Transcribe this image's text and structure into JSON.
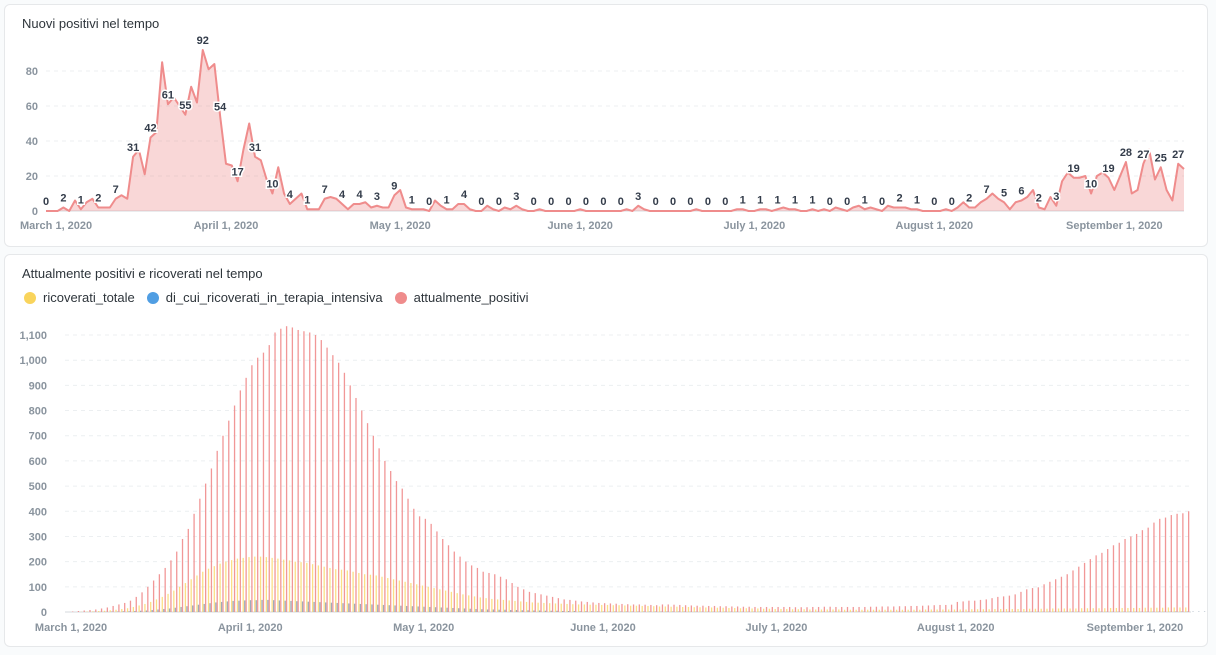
{
  "colors": {
    "positivi": "#ef8c8c",
    "ricoverati": "#f9d45c",
    "terapia": "#509ee3",
    "terapia_bar": "#95a3b3",
    "grid": "#eceff1"
  },
  "chart_data": [
    {
      "type": "area",
      "title": "Nuovi positivi nel tempo",
      "start_date": "2020-03-01",
      "label_every": 3,
      "ylim": [
        0,
        95
      ],
      "yticks": [
        0,
        20,
        40,
        60,
        80
      ],
      "xticks": [
        {
          "date": "2020-03-01",
          "label": "March 1, 2020"
        },
        {
          "date": "2020-04-01",
          "label": "April 1, 2020"
        },
        {
          "date": "2020-05-01",
          "label": "May 1, 2020"
        },
        {
          "date": "2020-06-01",
          "label": "June 1, 2020"
        },
        {
          "date": "2020-07-01",
          "label": "July 1, 2020"
        },
        {
          "date": "2020-08-01",
          "label": "August 1, 2020"
        },
        {
          "date": "2020-09-01",
          "label": "September 1, 2020"
        }
      ],
      "grid": true,
      "values": [
        0,
        0,
        0,
        2,
        0,
        6,
        1,
        5,
        7,
        2,
        2,
        2,
        7,
        9,
        7,
        31,
        35,
        21,
        42,
        45,
        85,
        61,
        65,
        60,
        55,
        71,
        62,
        92,
        81,
        84,
        54,
        27,
        26,
        17,
        35,
        50,
        31,
        29,
        18,
        10,
        25,
        10,
        4,
        7,
        10,
        1,
        1,
        1,
        7,
        8,
        7,
        4,
        1,
        4,
        4,
        5,
        2,
        3,
        2,
        2,
        9,
        12,
        2,
        1,
        1,
        1,
        0,
        6,
        3,
        1,
        1,
        4,
        4,
        1,
        0,
        0,
        3,
        1,
        0,
        2,
        1,
        3,
        1,
        0,
        0,
        1,
        0,
        0,
        0,
        0,
        0,
        0,
        1,
        0,
        0,
        0,
        0,
        0,
        0,
        0,
        1,
        0,
        3,
        1,
        0,
        0,
        0,
        0,
        0,
        0,
        0,
        0,
        1,
        0,
        0,
        0,
        0,
        0,
        0,
        1,
        1,
        0,
        0,
        1,
        1,
        0,
        1,
        2,
        1,
        1,
        0,
        0,
        1,
        0,
        1,
        0,
        2,
        1,
        0,
        2,
        3,
        1,
        2,
        1,
        0,
        3,
        2,
        2,
        2,
        1,
        1,
        0,
        0,
        0,
        0,
        1,
        0,
        2,
        5,
        2,
        2,
        5,
        7,
        10,
        7,
        5,
        1,
        5,
        6,
        8,
        12,
        2,
        1,
        8,
        3,
        17,
        22,
        19,
        19,
        20,
        10,
        20,
        22,
        19,
        12,
        20,
        28,
        10,
        12,
        27,
        35,
        18,
        25,
        12,
        6,
        27,
        24
      ]
    },
    {
      "type": "bar",
      "title": "Attualmente positivi e ricoverati nel tempo",
      "start_date": "2020-03-01",
      "ylim": [
        0,
        1150
      ],
      "yticks": [
        0,
        100,
        200,
        300,
        400,
        500,
        600,
        700,
        800,
        900,
        1000,
        1100
      ],
      "ytick_labels": [
        "0",
        "100",
        "200",
        "300",
        "400",
        "500",
        "600",
        "700",
        "800",
        "900",
        "1,000",
        "1,100"
      ],
      "xticks": [
        {
          "date": "2020-03-01",
          "label": "March 1, 2020"
        },
        {
          "date": "2020-04-01",
          "label": "April 1, 2020"
        },
        {
          "date": "2020-05-01",
          "label": "May 1, 2020"
        },
        {
          "date": "2020-06-01",
          "label": "June 1, 2020"
        },
        {
          "date": "2020-07-01",
          "label": "July 1, 2020"
        },
        {
          "date": "2020-08-01",
          "label": "August 1, 2020"
        },
        {
          "date": "2020-09-01",
          "label": "September 1, 2020"
        }
      ],
      "grid": true,
      "legend": "top-left",
      "series": [
        {
          "name": "ricoverati_totale",
          "color_key": "ricoverati",
          "values": [
            0,
            0,
            1,
            2,
            3,
            4,
            5,
            7,
            9,
            12,
            15,
            20,
            26,
            32,
            40,
            50,
            60,
            72,
            85,
            100,
            115,
            130,
            145,
            160,
            172,
            182,
            192,
            200,
            206,
            212,
            215,
            218,
            220,
            220,
            218,
            215,
            212,
            208,
            205,
            200,
            198,
            195,
            190,
            185,
            180,
            175,
            170,
            168,
            165,
            160,
            155,
            150,
            148,
            145,
            140,
            135,
            130,
            125,
            120,
            115,
            110,
            105,
            100,
            95,
            90,
            85,
            80,
            75,
            70,
            66,
            62,
            58,
            55,
            52,
            50,
            48,
            46,
            44,
            42,
            40,
            38,
            37,
            36,
            35,
            34,
            33,
            32,
            31,
            30,
            30,
            29,
            29,
            28,
            28,
            27,
            27,
            26,
            25,
            25,
            24,
            24,
            23,
            22,
            22,
            21,
            21,
            20,
            20,
            19,
            19,
            18,
            18,
            17,
            17,
            16,
            16,
            15,
            15,
            14,
            14,
            13,
            13,
            12,
            12,
            12,
            11,
            11,
            11,
            10,
            10,
            10,
            10,
            10,
            10,
            9,
            9,
            9,
            9,
            9,
            9,
            9,
            9,
            9,
            9,
            9,
            9,
            9,
            9,
            10,
            10,
            10,
            10,
            10,
            10,
            10,
            10,
            11,
            11,
            11,
            11,
            12,
            12,
            12,
            12,
            12,
            12,
            13,
            13,
            13,
            13,
            14,
            14,
            14,
            14,
            14,
            15,
            15,
            15,
            15,
            15,
            16,
            16,
            16,
            16,
            16,
            16,
            17,
            17,
            17,
            17,
            18,
            18,
            18,
            18
          ]
        },
        {
          "name": "di_cui_ricoverati_in_terapia_intensiva",
          "color_key": "terapia",
          "values": [
            0,
            0,
            0,
            0,
            1,
            1,
            1,
            2,
            2,
            3,
            3,
            4,
            5,
            6,
            8,
            10,
            12,
            14,
            17,
            20,
            23,
            26,
            29,
            32,
            35,
            38,
            40,
            42,
            44,
            45,
            46,
            47,
            47,
            48,
            48,
            47,
            46,
            45,
            44,
            43,
            42,
            41,
            40,
            39,
            38,
            37,
            36,
            35,
            34,
            33,
            32,
            31,
            30,
            29,
            28,
            27,
            26,
            25,
            24,
            23,
            22,
            21,
            20,
            19,
            18,
            17,
            16,
            15,
            14,
            13,
            12,
            11,
            10,
            10,
            9,
            9,
            8,
            8,
            7,
            7,
            6,
            6,
            5,
            5,
            5,
            4,
            4,
            4,
            3,
            3,
            3,
            3,
            2,
            2,
            2,
            2,
            2,
            2,
            2,
            2,
            2,
            2,
            2,
            2,
            2,
            2,
            2,
            1,
            1,
            1,
            1,
            1,
            1,
            1,
            1,
            1,
            1,
            1,
            1,
            1,
            1,
            1,
            1,
            1,
            1,
            1,
            1,
            1,
            1,
            1,
            1,
            1,
            1,
            1,
            1,
            1,
            1,
            1,
            1,
            1,
            1,
            1,
            1,
            1,
            1,
            1,
            1,
            1,
            1,
            1,
            1,
            1,
            1,
            1,
            1,
            1,
            1,
            1,
            1,
            1,
            1,
            1,
            1,
            1,
            1,
            1,
            1,
            1,
            1,
            1,
            1,
            1,
            1,
            1,
            1,
            1,
            1,
            1,
            1,
            1,
            1,
            1,
            1,
            1,
            1,
            1,
            1,
            1,
            1,
            1,
            1,
            2,
            2,
            2,
            2,
            2,
            2
          ]
        },
        {
          "name": "attualmente_positivi",
          "color_key": "positivi",
          "values": [
            2,
            4,
            6,
            8,
            10,
            14,
            18,
            24,
            30,
            36,
            45,
            60,
            78,
            100,
            125,
            150,
            175,
            205,
            240,
            290,
            330,
            390,
            450,
            510,
            570,
            640,
            700,
            760,
            820,
            880,
            930,
            980,
            1010,
            1030,
            1060,
            1110,
            1125,
            1135,
            1130,
            1120,
            1115,
            1110,
            1100,
            1080,
            1050,
            1020,
            990,
            950,
            900,
            850,
            800,
            750,
            700,
            650,
            600,
            560,
            520,
            490,
            450,
            410,
            380,
            370,
            350,
            320,
            290,
            265,
            240,
            220,
            200,
            185,
            175,
            160,
            155,
            150,
            140,
            130,
            115,
            100,
            90,
            80,
            75,
            70,
            65,
            60,
            55,
            50,
            48,
            45,
            42,
            40,
            38,
            36,
            35,
            34,
            33,
            32,
            31,
            30,
            30,
            29,
            28,
            27,
            30,
            30,
            29,
            28,
            27,
            26,
            25,
            25,
            24,
            24,
            23,
            23,
            22,
            22,
            21,
            21,
            20,
            20,
            20,
            20,
            20,
            20,
            20,
            19,
            19,
            19,
            20,
            20,
            21,
            21,
            20,
            20,
            20,
            20,
            20,
            20,
            21,
            21,
            22,
            22,
            22,
            23,
            23,
            24,
            24,
            25,
            26,
            27,
            28,
            28,
            29,
            40,
            42,
            45,
            45,
            48,
            50,
            55,
            60,
            62,
            65,
            70,
            80,
            90,
            95,
            98,
            110,
            120,
            130,
            140,
            150,
            165,
            180,
            195,
            210,
            225,
            235,
            250,
            265,
            275,
            290,
            300,
            310,
            325,
            335,
            355,
            370,
            375,
            385,
            390,
            392,
            400
          ]
        }
      ]
    }
  ]
}
